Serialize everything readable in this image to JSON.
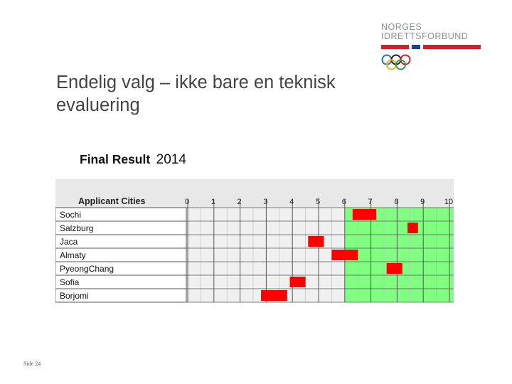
{
  "logo": {
    "line1": "NORGES",
    "line2": "IDRETTSFORBUND",
    "bar_colors": [
      "#d0202e",
      "#1f3f8f",
      "#d0202e"
    ],
    "ring_colors": [
      "#2b6fc0",
      "#222222",
      "#d0202e",
      "#f0b21a",
      "#2a9d4a"
    ]
  },
  "slide": {
    "title": "Endelig valg – ikke bare en teknisk evaluering",
    "footer": "Side 24"
  },
  "chart_data": {
    "type": "range-bar",
    "title_label": "Final Result",
    "title_year": "2014",
    "column_header": "Applicant Cities",
    "x_ticks": [
      "0",
      "1",
      "2",
      "3",
      "4",
      "5",
      "6",
      "7",
      "8",
      "9",
      "10"
    ],
    "xlim": [
      0,
      10
    ],
    "pass_threshold": 6,
    "colors": {
      "bar": "#ff0000",
      "pass_zone": "#80ff80",
      "fail_zone": "#f0f0f0",
      "header": "#e8e8e8"
    },
    "rows": [
      {
        "city": "Sochi",
        "min": 6.3,
        "max": 7.2
      },
      {
        "city": "Salzburg",
        "min": 8.4,
        "max": 8.8
      },
      {
        "city": "Jaca",
        "min": 4.6,
        "max": 5.2
      },
      {
        "city": "Almaty",
        "min": 5.5,
        "max": 6.5
      },
      {
        "city": "PyeongChang",
        "min": 7.6,
        "max": 8.2
      },
      {
        "city": "Sofia",
        "min": 3.9,
        "max": 4.5
      },
      {
        "city": "Borjomi",
        "min": 2.8,
        "max": 3.8
      }
    ]
  }
}
